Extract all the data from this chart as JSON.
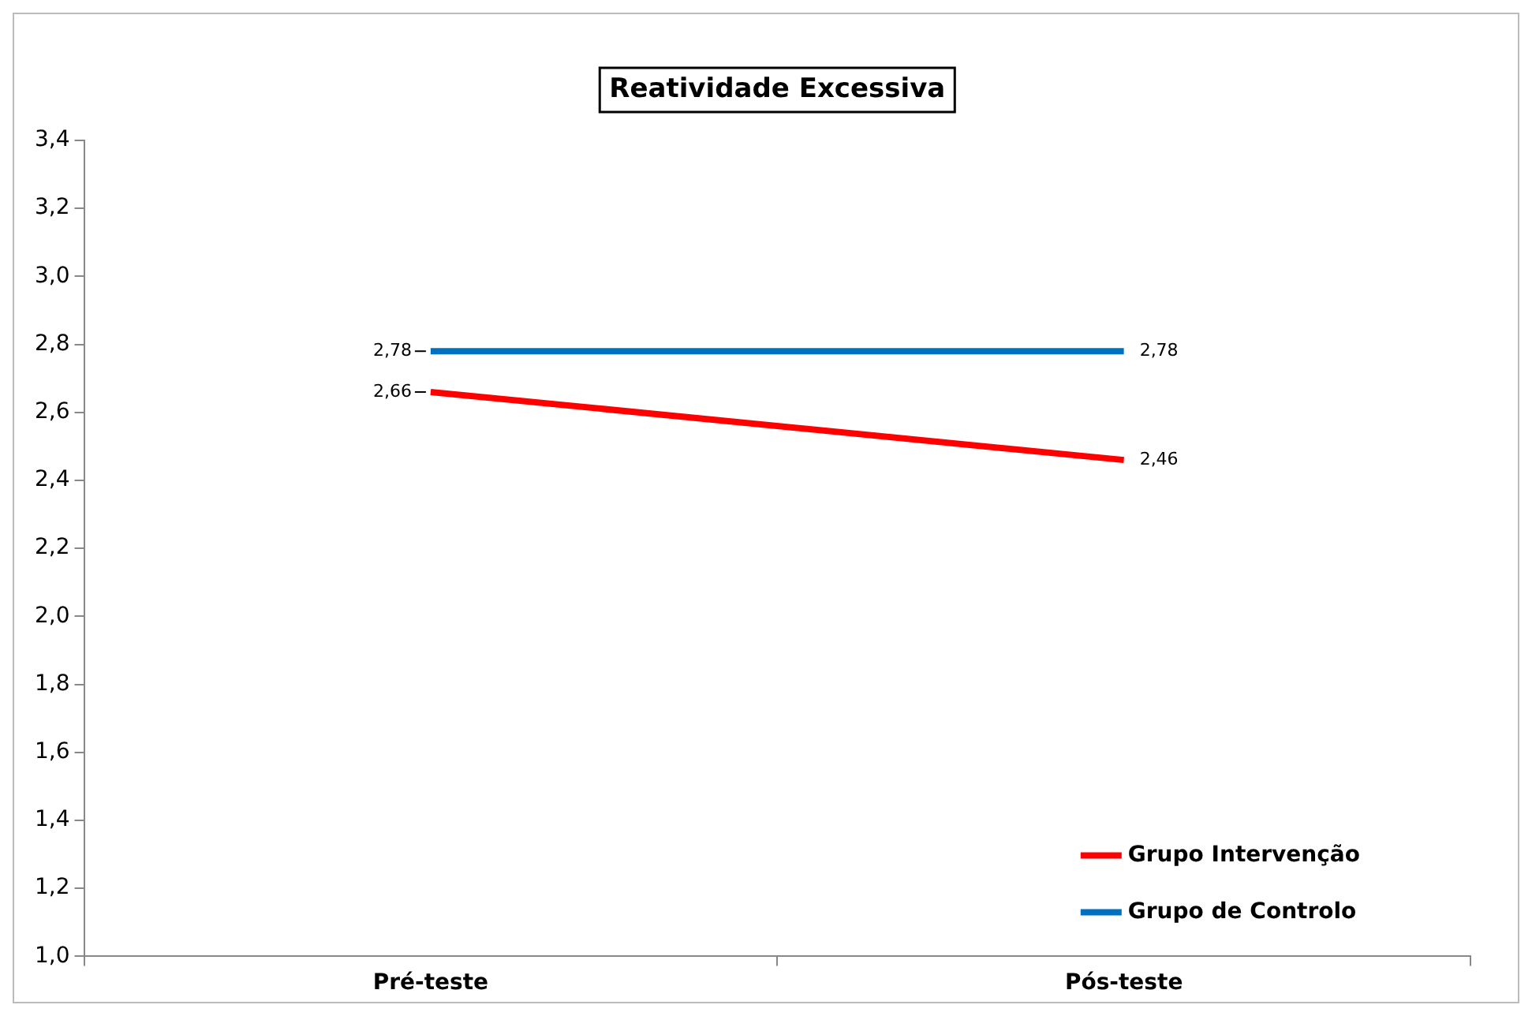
{
  "chart_data": {
    "type": "line",
    "title": "Reatividade Excessiva",
    "categories": [
      "Pré-teste",
      "Pós-teste"
    ],
    "series": [
      {
        "name": "Grupo Intervenção",
        "color": "#ff0000",
        "values": [
          2.66,
          2.46
        ],
        "value_labels": [
          "2,66",
          "2,46"
        ]
      },
      {
        "name": "Grupo de Controlo",
        "color": "#0070c0",
        "values": [
          2.78,
          2.78
        ],
        "value_labels": [
          "2,78",
          "2,78"
        ]
      }
    ],
    "ylim": [
      1.0,
      3.4
    ],
    "yticks": [
      {
        "value": 1.0,
        "label": "1,0"
      },
      {
        "value": 1.2,
        "label": "1,2"
      },
      {
        "value": 1.4,
        "label": "1,4"
      },
      {
        "value": 1.6,
        "label": "1,6"
      },
      {
        "value": 1.8,
        "label": "1,8"
      },
      {
        "value": 2.0,
        "label": "2,0"
      },
      {
        "value": 2.2,
        "label": "2,2"
      },
      {
        "value": 2.4,
        "label": "2,4"
      },
      {
        "value": 2.6,
        "label": "2,6"
      },
      {
        "value": 2.8,
        "label": "2,8"
      },
      {
        "value": 3.0,
        "label": "3,0"
      },
      {
        "value": 3.2,
        "label": "3,2"
      },
      {
        "value": 3.4,
        "label": "3,4"
      }
    ],
    "grid": false,
    "legend": "bottom right",
    "marker": "none",
    "line_style": "solid"
  }
}
